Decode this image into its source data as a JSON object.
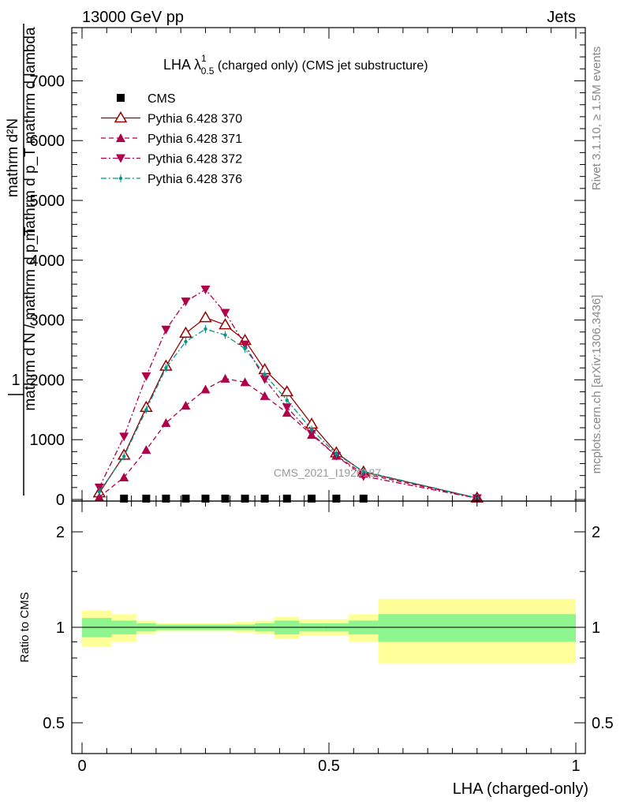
{
  "header": {
    "left": "13000 GeV pp",
    "right": "Jets"
  },
  "side_labels": {
    "rivet": "Rivet 3.1.10, ≥ 1.5M events",
    "mcplots": "mcplots.cern.ch [arXiv:1306.3436]"
  },
  "watermark": "CMS_2021_I1920187",
  "chart_data": {
    "type": "line",
    "title": {
      "prefix": "LHA λ",
      "sup": "1",
      "sub": "0.5",
      "suffix": " (charged only) (CMS jet substructure)"
    },
    "ylabel": {
      "num": "1",
      "den": "mathrm d N / mathrm d p_T",
      "num2": "mathrm d²N",
      "den2": "mathrm d p_T mathrm d lambda"
    },
    "xlabel": "LHA (charged-only)",
    "ratio_ylabel": "Ratio to CMS",
    "xlim": [
      0,
      1
    ],
    "ylim": [
      0,
      7900
    ],
    "ratio_ylim": [
      0.4,
      2.3
    ],
    "x_ticks": [
      "0",
      "0.5",
      "1"
    ],
    "y_ticks": [
      "0",
      "1000",
      "2000",
      "3000",
      "4000",
      "5000",
      "6000",
      "7000"
    ],
    "ratio_ticks": [
      "0.5",
      "1",
      "2"
    ],
    "x": [
      0.035,
      0.085,
      0.13,
      0.17,
      0.21,
      0.25,
      0.29,
      0.33,
      0.37,
      0.415,
      0.465,
      0.515,
      0.57,
      0.8
    ],
    "series": [
      {
        "name": "CMS",
        "color": "#000000",
        "marker": "square",
        "x": [
          0.085,
          0.13,
          0.17,
          0.21,
          0.25,
          0.29,
          0.33,
          0.37,
          0.415,
          0.465,
          0.515,
          0.57
        ],
        "values": [
          15,
          15,
          15,
          15,
          15,
          15,
          15,
          15,
          15,
          15,
          15,
          15
        ]
      },
      {
        "name": "Pythia 6.428 370",
        "color": "#990000",
        "marker": "open-triangle-up",
        "dash": "solid",
        "values": [
          110,
          740,
          1540,
          2230,
          2780,
          3040,
          2920,
          2660,
          2170,
          1800,
          1260,
          780,
          460,
          25
        ]
      },
      {
        "name": "Pythia 6.428 371",
        "color": "#b0004a",
        "marker": "triangle-up",
        "dash": "dashed",
        "values": [
          40,
          370,
          830,
          1280,
          1570,
          1840,
          2020,
          1960,
          1730,
          1450,
          1080,
          730,
          430,
          25
        ]
      },
      {
        "name": "Pythia 6.428 372",
        "color": "#b0004a",
        "marker": "triangle-down",
        "dash": "dashdot",
        "values": [
          200,
          1050,
          2060,
          2840,
          3310,
          3510,
          3120,
          2590,
          2010,
          1540,
          1100,
          730,
          390,
          20
        ]
      },
      {
        "name": "Pythia 6.428 376",
        "color": "#009988",
        "marker": "dot",
        "dash": "dashdot",
        "values": [
          130,
          720,
          1500,
          2200,
          2640,
          2850,
          2750,
          2520,
          2090,
          1660,
          1170,
          760,
          470,
          25
        ]
      }
    ],
    "ratio_band": {
      "edges": [
        0,
        0.06,
        0.11,
        0.15,
        0.19,
        0.23,
        0.27,
        0.31,
        0.35,
        0.39,
        0.44,
        0.49,
        0.54,
        0.6,
        1.0
      ],
      "inner": [
        0.07,
        0.05,
        0.03,
        0.02,
        0.02,
        0.02,
        0.02,
        0.02,
        0.03,
        0.05,
        0.03,
        0.03,
        0.05,
        0.1
      ],
      "outer": [
        0.13,
        0.1,
        0.05,
        0.03,
        0.03,
        0.03,
        0.03,
        0.04,
        0.05,
        0.08,
        0.06,
        0.06,
        0.1,
        0.23
      ]
    },
    "colors": {
      "band_inner": "#8ff58f",
      "band_outer": "#ffff99"
    }
  }
}
